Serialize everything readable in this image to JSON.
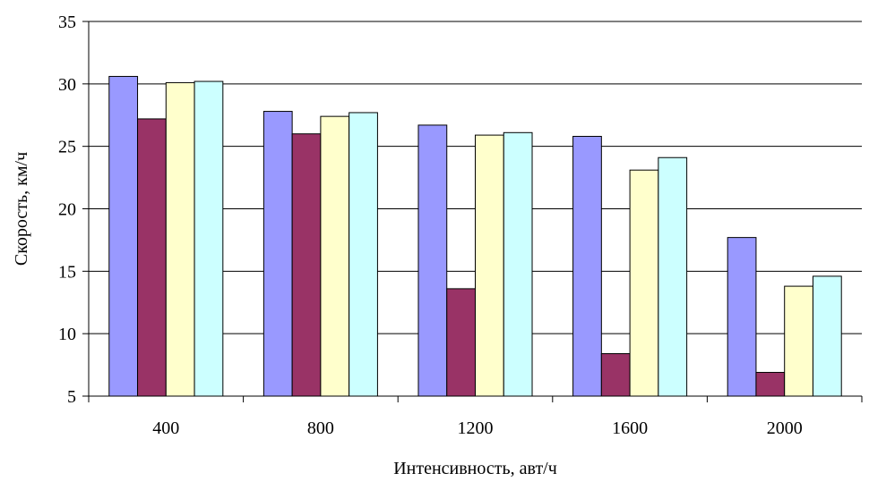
{
  "chart_data": {
    "type": "bar",
    "title": "",
    "xlabel": "Интенсивность, авт/ч",
    "ylabel": "Скорость, км/ч",
    "categories": [
      "400",
      "800",
      "1200",
      "1600",
      "2000"
    ],
    "ylim": [
      5,
      35
    ],
    "yticks": [
      "5",
      "10",
      "15",
      "20",
      "25",
      "30",
      "35"
    ],
    "grid": "horizontal",
    "legend": "none",
    "series": [
      {
        "color": "#9999ff",
        "values": [
          30.6,
          27.8,
          26.7,
          25.8,
          17.7
        ]
      },
      {
        "color": "#993366",
        "values": [
          27.2,
          26.0,
          13.6,
          8.4,
          6.9
        ]
      },
      {
        "color": "#ffffcc",
        "values": [
          30.1,
          27.4,
          25.9,
          23.1,
          13.8
        ]
      },
      {
        "color": "#ccffff",
        "values": [
          30.2,
          27.7,
          26.1,
          24.1,
          14.6
        ]
      }
    ]
  }
}
